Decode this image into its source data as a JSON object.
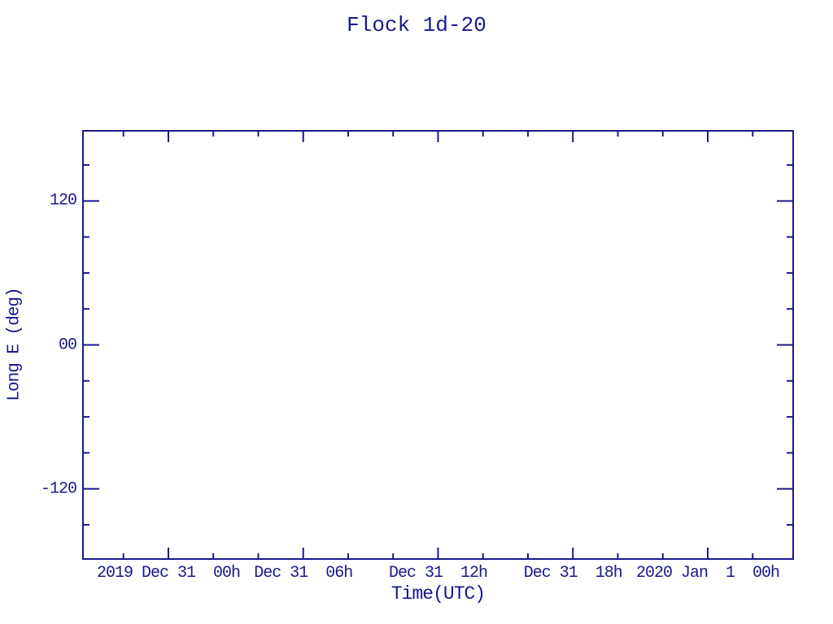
{
  "page": {
    "background": "#ffffff"
  },
  "chart_data": {
    "type": "line",
    "title": "Flock 1d-20",
    "xlabel": "Time(UTC)",
    "ylabel": "Long E (deg)",
    "axis_color": "#19198C",
    "background_color": "#ffffff",
    "grid": false,
    "legend": null,
    "series": [],
    "note": "empty plot frame - no data points drawn",
    "x_axis": {
      "range_hours": [
        -3.8,
        27.8
      ],
      "major_ticks_hours": [
        0,
        6,
        12,
        18,
        24
      ],
      "major_tick_labels": [
        "2019 Dec 31  00h",
        "Dec 31  06h",
        "Dec 31  12h",
        "Dec 31  18h",
        "2020 Jan  1  00h"
      ],
      "minor_ticks_hours": [
        -2,
        2,
        4,
        8,
        10,
        14,
        16,
        20,
        22,
        26
      ]
    },
    "y_axis": {
      "range_deg": [
        -178.5,
        178.5
      ],
      "major_ticks_deg": [
        120,
        0,
        -120
      ],
      "major_tick_labels": [
        "120",
        "00",
        "-120"
      ],
      "minor_ticks_deg": [
        150,
        90,
        60,
        30,
        -30,
        -60,
        -90,
        -150
      ]
    }
  }
}
